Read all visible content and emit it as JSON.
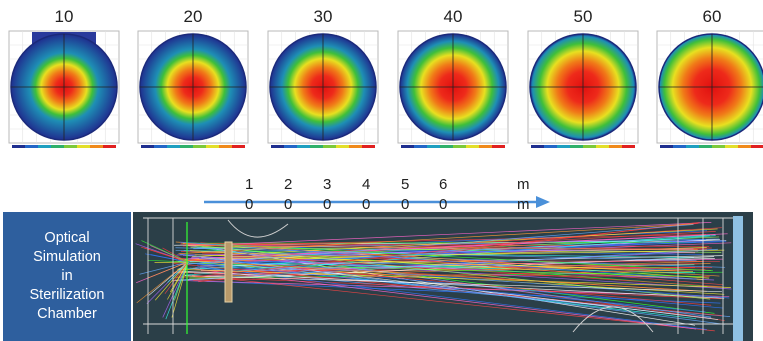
{
  "tiles": [
    {
      "label": "10",
      "spread": 0.35
    },
    {
      "label": "20",
      "spread": 0.45
    },
    {
      "label": "30",
      "spread": 0.55
    },
    {
      "label": "40",
      "spread": 0.68
    },
    {
      "label": "50",
      "spread": 0.82
    },
    {
      "label": "60",
      "spread": 0.95
    }
  ],
  "scale": {
    "top_labels": [
      "1",
      "2",
      "3",
      "4",
      "5",
      "6",
      "m"
    ],
    "bottom_labels": [
      "0",
      "0",
      "0",
      "0",
      "0",
      "0",
      "m"
    ]
  },
  "side_panel": {
    "text": "Optical\nSimulation\nin\nSterilization\nChamber",
    "background": "#2e5f9e"
  },
  "colors": {
    "arrow": "#4a90d9",
    "chamber_bg": "#2b3f48"
  }
}
